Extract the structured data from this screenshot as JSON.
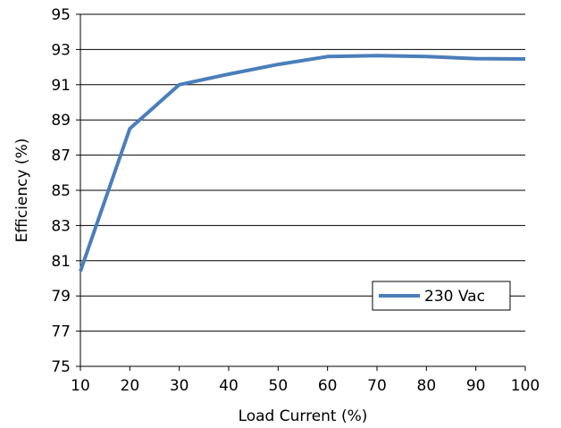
{
  "chart_data": {
    "type": "line",
    "xlabel": "Load Current  (%)",
    "ylabel": "Efficiency (%)",
    "xlim": [
      10,
      100
    ],
    "ylim": [
      75,
      95
    ],
    "xticks": [
      "10",
      "20",
      "30",
      "40",
      "50",
      "60",
      "70",
      "80",
      "90",
      "100"
    ],
    "yticks": [
      "75",
      "77",
      "79",
      "81",
      "83",
      "85",
      "87",
      "89",
      "91",
      "93",
      "95"
    ],
    "grid": "horizontal",
    "legend_position": "bottom-right",
    "series": [
      {
        "name": "230 Vac",
        "color": "#4a7ebb",
        "x": [
          10,
          20,
          30,
          40,
          50,
          60,
          70,
          80,
          90,
          100
        ],
        "y": [
          80.4,
          88.5,
          91.0,
          91.6,
          92.15,
          92.6,
          92.65,
          92.6,
          92.48,
          92.46
        ]
      }
    ]
  }
}
